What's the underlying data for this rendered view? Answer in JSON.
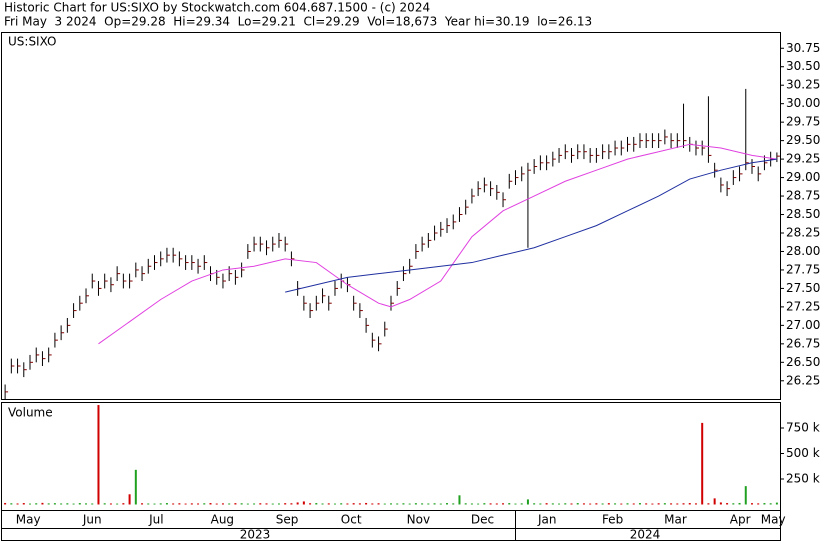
{
  "chart_data": {
    "type": "ohlc",
    "title": "Historic Chart for US:SIXO by Stockwatch.com 604.687.1500 - (c) 2024",
    "subtitle": "Fri May  3 2024  Op=29.28  Hi=29.34  Lo=29.21  Cl=29.29  Vol=18,673  Year hi=30.19  lo=26.13",
    "symbol": "US:SIXO",
    "volume_label": "Volume",
    "years": [
      "2023",
      "2024"
    ],
    "xlim": [
      0,
      125
    ],
    "xticks": [
      {
        "value": 4.2,
        "label": "May"
      },
      {
        "value": 14.5,
        "label": "Jun"
      },
      {
        "value": 24.8,
        "label": "Jul"
      },
      {
        "value": 35.4,
        "label": "Aug"
      },
      {
        "value": 45.8,
        "label": "Sep"
      },
      {
        "value": 56.1,
        "label": "Oct"
      },
      {
        "value": 66.9,
        "label": "Nov"
      },
      {
        "value": 77.2,
        "label": "Dec"
      },
      {
        "value": 87.6,
        "label": "Jan"
      },
      {
        "value": 98.1,
        "label": "Feb"
      },
      {
        "value": 108.2,
        "label": "Mar"
      },
      {
        "value": 118.6,
        "label": "Apr"
      },
      {
        "value": 123.9,
        "label": "May"
      }
    ],
    "ylim": [
      25.99,
      30.97
    ],
    "yticks": [
      26.25,
      {
        "value": 26.5,
        "label": "26.50"
      },
      26.75,
      {
        "value": 27,
        "label": "27.00"
      },
      27.25,
      {
        "value": 27.5,
        "label": "27.50"
      },
      27.75,
      {
        "value": 28,
        "label": "28.00"
      },
      28.25,
      {
        "value": 28.5,
        "label": "28.50"
      },
      28.75,
      {
        "value": 29,
        "label": "29.00"
      },
      29.25,
      {
        "value": 29.5,
        "label": "29.50"
      },
      29.75,
      {
        "value": 30,
        "label": "30.00"
      },
      30.25,
      {
        "value": 30.5,
        "label": "30.50"
      },
      30.75
    ],
    "color": "#800000",
    "high": [
      26.2,
      26.55,
      26.55,
      26.5,
      26.6,
      26.7,
      26.65,
      26.7,
      26.9,
      27.0,
      27.1,
      27.3,
      27.4,
      27.5,
      27.7,
      27.6,
      27.7,
      27.65,
      27.8,
      27.7,
      27.7,
      27.85,
      27.8,
      27.9,
      27.95,
      28.0,
      28.05,
      28.05,
      28.0,
      27.95,
      27.95,
      27.9,
      27.95,
      27.8,
      27.75,
      27.7,
      27.8,
      27.75,
      27.85,
      28.1,
      28.2,
      28.2,
      28.15,
      28.2,
      28.25,
      28.2,
      28.0,
      27.6,
      27.4,
      27.3,
      27.4,
      27.5,
      27.4,
      27.6,
      27.7,
      27.65,
      27.4,
      27.3,
      27.1,
      26.9,
      26.85,
      27.05,
      27.4,
      27.6,
      27.8,
      27.9,
      28.1,
      28.2,
      28.25,
      28.35,
      28.4,
      28.45,
      28.5,
      28.6,
      28.7,
      28.85,
      28.95,
      29.0,
      28.95,
      28.9,
      28.8,
      29.05,
      29.1,
      29.15,
      29.2,
      29.25,
      29.3,
      29.3,
      29.35,
      29.4,
      29.45,
      29.4,
      29.45,
      29.45,
      29.4,
      29.4,
      29.45,
      29.45,
      29.5,
      29.5,
      29.55,
      29.55,
      29.6,
      29.6,
      29.6,
      29.6,
      29.65,
      29.6,
      29.6,
      30.0,
      29.55,
      29.5,
      29.5,
      30.1,
      29.2,
      29.0,
      28.95,
      29.1,
      29.15,
      30.2,
      29.25,
      29.15,
      29.3,
      29.35,
      29.34
    ],
    "low": [
      26.0,
      26.35,
      26.35,
      26.3,
      26.4,
      26.5,
      26.45,
      26.5,
      26.7,
      26.8,
      26.9,
      27.1,
      27.2,
      27.3,
      27.5,
      27.4,
      27.5,
      27.45,
      27.6,
      27.5,
      27.5,
      27.65,
      27.6,
      27.7,
      27.75,
      27.8,
      27.85,
      27.85,
      27.8,
      27.75,
      27.75,
      27.7,
      27.75,
      27.6,
      27.55,
      27.5,
      27.6,
      27.55,
      27.65,
      27.9,
      28.0,
      28.0,
      27.95,
      28.0,
      28.05,
      28.0,
      27.8,
      27.4,
      27.2,
      27.1,
      27.2,
      27.3,
      27.2,
      27.4,
      27.5,
      27.45,
      27.2,
      27.1,
      26.9,
      26.7,
      26.65,
      26.85,
      27.2,
      27.4,
      27.6,
      27.7,
      27.9,
      28.0,
      28.05,
      28.15,
      28.2,
      28.25,
      28.3,
      28.4,
      28.5,
      28.65,
      28.75,
      28.8,
      28.75,
      28.7,
      28.6,
      28.85,
      28.9,
      28.95,
      28.05,
      29.05,
      29.1,
      29.1,
      29.15,
      29.2,
      29.25,
      29.2,
      29.25,
      29.25,
      29.2,
      29.2,
      29.25,
      29.25,
      29.3,
      29.3,
      29.35,
      29.35,
      29.4,
      29.4,
      29.4,
      29.4,
      29.45,
      29.4,
      29.4,
      29.4,
      29.35,
      29.3,
      29.3,
      29.2,
      29.0,
      28.8,
      28.75,
      28.9,
      28.95,
      29.1,
      29.05,
      28.95,
      29.1,
      29.15,
      29.21
    ],
    "close": [
      26.1,
      26.45,
      26.45,
      26.4,
      26.5,
      26.6,
      26.55,
      26.6,
      26.8,
      26.9,
      27.0,
      27.2,
      27.3,
      27.4,
      27.6,
      27.5,
      27.6,
      27.55,
      27.7,
      27.6,
      27.6,
      27.75,
      27.7,
      27.8,
      27.85,
      27.9,
      27.95,
      27.95,
      27.9,
      27.85,
      27.85,
      27.8,
      27.85,
      27.7,
      27.65,
      27.6,
      27.7,
      27.65,
      27.75,
      28.0,
      28.1,
      28.1,
      28.05,
      28.1,
      28.15,
      28.1,
      27.9,
      27.5,
      27.3,
      27.2,
      27.3,
      27.4,
      27.3,
      27.5,
      27.6,
      27.55,
      27.3,
      27.2,
      27.0,
      26.8,
      26.75,
      26.95,
      27.3,
      27.5,
      27.7,
      27.8,
      28.0,
      28.1,
      28.15,
      28.25,
      28.3,
      28.35,
      28.4,
      28.5,
      28.6,
      28.75,
      28.85,
      28.9,
      28.85,
      28.8,
      28.7,
      28.95,
      29.0,
      29.05,
      29.1,
      29.15,
      29.2,
      29.2,
      29.25,
      29.3,
      29.35,
      29.3,
      29.35,
      29.35,
      29.3,
      29.3,
      29.35,
      29.35,
      29.4,
      29.4,
      29.45,
      29.45,
      29.5,
      29.5,
      29.5,
      29.5,
      29.55,
      29.5,
      29.5,
      29.5,
      29.45,
      29.4,
      29.4,
      29.3,
      29.1,
      28.9,
      28.85,
      29.0,
      29.05,
      29.2,
      29.15,
      29.05,
      29.2,
      29.25,
      29.29
    ],
    "moving_averages": [
      {
        "color": "#e040e0",
        "x": [
          15,
          20,
          25,
          30,
          35,
          40,
          45,
          50,
          55,
          60,
          62,
          65,
          70,
          75,
          80,
          85,
          90,
          95,
          100,
          105,
          110,
          115,
          120,
          124
        ],
        "values": [
          26.75,
          27.05,
          27.35,
          27.6,
          27.75,
          27.8,
          27.9,
          27.85,
          27.55,
          27.3,
          27.25,
          27.35,
          27.6,
          28.2,
          28.55,
          28.75,
          28.95,
          29.1,
          29.25,
          29.35,
          29.45,
          29.4,
          29.3,
          29.25
        ]
      },
      {
        "color": "#2030a0",
        "x": [
          45,
          50,
          55,
          60,
          65,
          70,
          75,
          80,
          85,
          90,
          95,
          100,
          105,
          110,
          115,
          120,
          124
        ],
        "values": [
          27.45,
          27.55,
          27.65,
          27.7,
          27.75,
          27.8,
          27.85,
          27.95,
          28.05,
          28.2,
          28.35,
          28.55,
          28.75,
          28.98,
          29.1,
          29.2,
          29.25
        ]
      }
    ],
    "volume": {
      "ylim": [
        -54000,
        995000
      ],
      "yticks": [
        {
          "value": 250000,
          "label": "250 k"
        },
        {
          "value": 500000,
          "label": "500 k"
        },
        {
          "value": 750000,
          "label": "750 k"
        }
      ],
      "up_color": "#20a020",
      "down_color": "#d00000",
      "values": [
        15000,
        12000,
        10000,
        14000,
        9000,
        12000,
        16000,
        11000,
        13000,
        10000,
        12000,
        9000,
        14000,
        11000,
        10000,
        975000,
        12000,
        10000,
        9000,
        13000,
        100000,
        340000,
        12000,
        10000,
        9000,
        11000,
        14000,
        10000,
        12000,
        9000,
        11000,
        10000,
        12000,
        14000,
        9000,
        11000,
        10000,
        13000,
        12000,
        9000,
        10000,
        12000,
        11000,
        9000,
        10000,
        13000,
        12000,
        20000,
        30000,
        12000,
        14000,
        10000,
        11000,
        9000,
        12000,
        10000,
        13000,
        11000,
        15000,
        10000,
        12000,
        9000,
        11000,
        10000,
        12000,
        9000,
        13000,
        11000,
        10000,
        12000,
        9000,
        14000,
        11000,
        90000,
        12000,
        10000,
        9000,
        13000,
        11000,
        10000,
        12000,
        14000,
        9000,
        11000,
        50000,
        12000,
        10000,
        13000,
        11000,
        9000,
        12000,
        10000,
        14000,
        11000,
        9000,
        12000,
        10000,
        13000,
        11000,
        9000,
        12000,
        10000,
        14000,
        11000,
        9000,
        12000,
        13000,
        11000,
        10000,
        12000,
        14000,
        11000,
        800000,
        12000,
        60000,
        20000,
        14000,
        12000,
        15000,
        180000,
        13000,
        11000,
        14000,
        12000,
        18673
      ]
    }
  }
}
